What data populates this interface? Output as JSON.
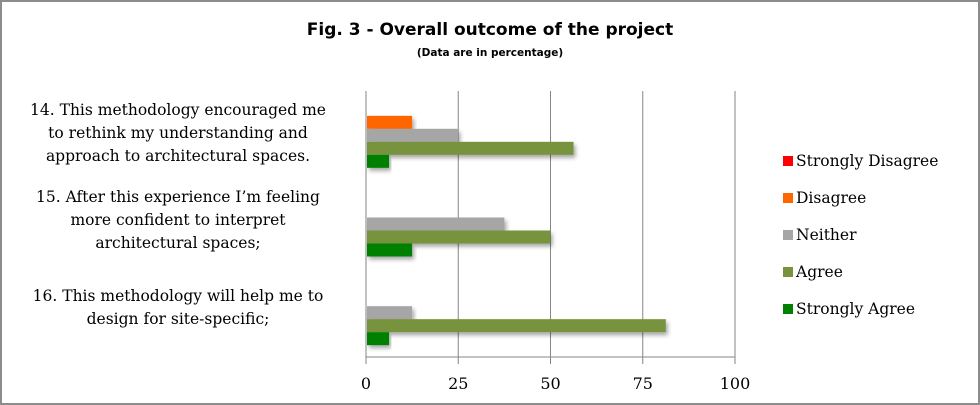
{
  "chart_data": {
    "type": "bar",
    "orientation": "horizontal",
    "title": "Fig. 3 - Overall outcome of the project",
    "subtitle": "(Data are in percentage)",
    "xlabel": "",
    "ylabel": "",
    "xlim": [
      0,
      100
    ],
    "xticks": [
      "0",
      "25",
      "50",
      "75",
      "100"
    ],
    "grid": true,
    "legend_position": "right",
    "categories": [
      [
        "14. This methodology encouraged me",
        "to rethink my understanding and",
        "approach to architectural spaces."
      ],
      [
        "15. After this experience I’m feeling",
        "more confident to interpret",
        "architectural spaces;"
      ],
      [
        "16. This methodology will help me to",
        "design for site-specific;"
      ]
    ],
    "series": [
      {
        "name": "Strongly Disagree",
        "color": "#ff0000",
        "values": [
          0,
          0,
          0
        ]
      },
      {
        "name": "Disagree",
        "color": "#ff6600",
        "values": [
          12.5,
          0,
          0
        ]
      },
      {
        "name": "Neither",
        "color": "#a6a6a6",
        "values": [
          25,
          37.5,
          12.5
        ]
      },
      {
        "name": "Agree",
        "color": "#77933c",
        "values": [
          56.25,
          50,
          81.25
        ]
      },
      {
        "name": "Strongly Agree",
        "color": "#008000",
        "values": [
          6.25,
          12.5,
          6.25
        ]
      }
    ]
  }
}
